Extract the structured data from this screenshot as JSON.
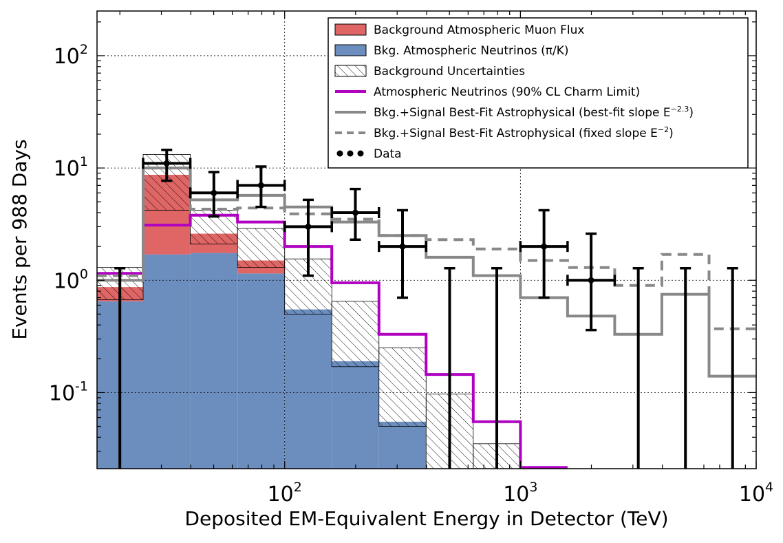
{
  "chart_data": {
    "type": "bar",
    "title": "",
    "xlabel": "Deposited EM-Equivalent Energy in Detector (TeV)",
    "ylabel": "Events per 988 Days",
    "xscale": "log",
    "yscale": "log",
    "xlim": [
      16,
      10000
    ],
    "ylim": [
      0.021,
      250
    ],
    "grid": true,
    "legend_position": "top-right",
    "bin_edges": [
      16,
      25.1,
      39.8,
      63.1,
      100,
      158.5,
      251.2,
      398.1,
      631,
      1000,
      1585,
      2512,
      3981,
      6310,
      10000
    ],
    "x_ticks": [
      {
        "value": 100,
        "base": "10",
        "exp": "2"
      },
      {
        "value": 1000,
        "base": "10",
        "exp": "3"
      },
      {
        "value": 10000,
        "base": "10",
        "exp": "4"
      }
    ],
    "y_ticks": [
      {
        "value": 0.1,
        "base": "10",
        "exp": "-1"
      },
      {
        "value": 1,
        "base": "10",
        "exp": "0"
      },
      {
        "value": 10,
        "base": "10",
        "exp": "1"
      },
      {
        "value": 100,
        "base": "10",
        "exp": "2"
      }
    ],
    "stacked": [
      {
        "name": "Bkg. Atmospheric Neutrinos (π/K)",
        "color": "#6c8ebf",
        "values": [
          0.65,
          1.7,
          1.75,
          1.15,
          0.55,
          0.19,
          0.055,
          0,
          0,
          0,
          0,
          0,
          0,
          0
        ]
      },
      {
        "name": "Background Atmospheric Muon Flux",
        "color": "#e06666",
        "values": [
          0.22,
          7.0,
          0.85,
          0.35,
          0,
          0,
          0,
          0,
          0,
          0,
          0,
          0,
          0,
          0
        ]
      }
    ],
    "uncertainty": {
      "name": "Background Uncertainties",
      "bands": [
        {
          "bin": 0,
          "lo": 0.67,
          "hi": 1.3
        },
        {
          "bin": 1,
          "lo": 4.2,
          "hi": 13.2
        },
        {
          "bin": 2,
          "lo": 2.1,
          "hi": 4.2
        },
        {
          "bin": 3,
          "lo": 1.3,
          "hi": 2.9
        },
        {
          "bin": 4,
          "lo": 0.5,
          "hi": 1.55
        },
        {
          "bin": 5,
          "lo": 0.17,
          "hi": 0.65
        },
        {
          "bin": 6,
          "lo": 0.05,
          "hi": 0.25
        },
        {
          "bin": 7,
          "lo": 0.021,
          "hi": 0.097
        },
        {
          "bin": 8,
          "lo": 0.021,
          "hi": 0.035
        }
      ]
    },
    "lines": [
      {
        "name": "Atmospheric Neutrinos (90% CL Charm Limit)",
        "color": "#b000c0",
        "dash": "",
        "values": [
          1.15,
          3.1,
          3.8,
          3.3,
          2.0,
          0.95,
          0.33,
          0.145,
          0.055,
          0.0215,
          null,
          null,
          null,
          null
        ]
      },
      {
        "name": "Bkg.+Signal Best-Fit Astrophysical (best-fit slope E^-2.3)",
        "color": "#888888",
        "dash": "",
        "values": [
          1.0,
          10.0,
          5.2,
          5.7,
          4.5,
          3.3,
          2.5,
          1.6,
          1.1,
          0.7,
          0.48,
          0.33,
          0.75,
          0.14
        ]
      },
      {
        "name": "Bkg.+Signal Best-Fit Astrophysical (fixed slope E^-2)",
        "color": "#888888",
        "dash": "14,9",
        "values": [
          1.1,
          10.0,
          4.3,
          4.4,
          3.9,
          3.5,
          2.5,
          2.3,
          1.9,
          1.5,
          1.3,
          0.9,
          1.7,
          0.37
        ]
      }
    ],
    "data_points": {
      "name": "Data",
      "points": [
        {
          "x": 20,
          "y": null,
          "err_hi": 1.28,
          "xerr": false
        },
        {
          "x": 31.6,
          "y": 11,
          "err_lo": 7.7,
          "err_hi": 14.5,
          "xerr": true
        },
        {
          "x": 50.1,
          "y": 6,
          "err_lo": 3.7,
          "err_hi": 9.2,
          "xerr": true
        },
        {
          "x": 79.4,
          "y": 7,
          "err_lo": 4.5,
          "err_hi": 10.3,
          "xerr": true
        },
        {
          "x": 125.9,
          "y": 3,
          "err_lo": 1.1,
          "err_hi": 5.2,
          "xerr": true
        },
        {
          "x": 199.5,
          "y": 4,
          "err_lo": 2.3,
          "err_hi": 6.5,
          "xerr": true
        },
        {
          "x": 316.2,
          "y": 2,
          "err_lo": 0.7,
          "err_hi": 4.2,
          "xerr": true
        },
        {
          "x": 501,
          "y": null,
          "err_hi": 1.28,
          "xerr": false
        },
        {
          "x": 794,
          "y": null,
          "err_hi": 1.28,
          "xerr": false
        },
        {
          "x": 1259,
          "y": 2,
          "err_lo": 0.7,
          "err_hi": 4.2,
          "xerr": true
        },
        {
          "x": 1995,
          "y": 1,
          "err_lo": 0.36,
          "err_hi": 2.6,
          "xerr": true
        },
        {
          "x": 3162,
          "y": null,
          "err_hi": 1.28,
          "xerr": false
        },
        {
          "x": 5012,
          "y": null,
          "err_hi": 1.28,
          "xerr": false
        },
        {
          "x": 7943,
          "y": null,
          "err_hi": 1.28,
          "xerr": false
        }
      ]
    },
    "legend": [
      {
        "label": "Background Atmospheric Muon Flux",
        "kind": "patch",
        "color": "#e06666"
      },
      {
        "label": "Bkg. Atmospheric Neutrinos (π/K)",
        "kind": "patch",
        "color": "#6c8ebf"
      },
      {
        "label": "Background Uncertainties",
        "kind": "hatch",
        "color": "#ffffff"
      },
      {
        "label": "Atmospheric Neutrinos (90% CL Charm Limit)",
        "kind": "line",
        "color": "#b000c0",
        "dash": ""
      },
      {
        "label": "Bkg.+Signal Best-Fit Astrophysical (best-fit slope E",
        "sup": "−2.3",
        "tail": ")",
        "kind": "line",
        "color": "#888888",
        "dash": ""
      },
      {
        "label": "Bkg.+Signal Best-Fit Astrophysical (fixed slope E",
        "sup": "−2",
        "tail": ")",
        "kind": "line",
        "color": "#888888",
        "dash": "10,7"
      },
      {
        "label": "Data",
        "kind": "dots",
        "color": "#000000"
      }
    ]
  }
}
